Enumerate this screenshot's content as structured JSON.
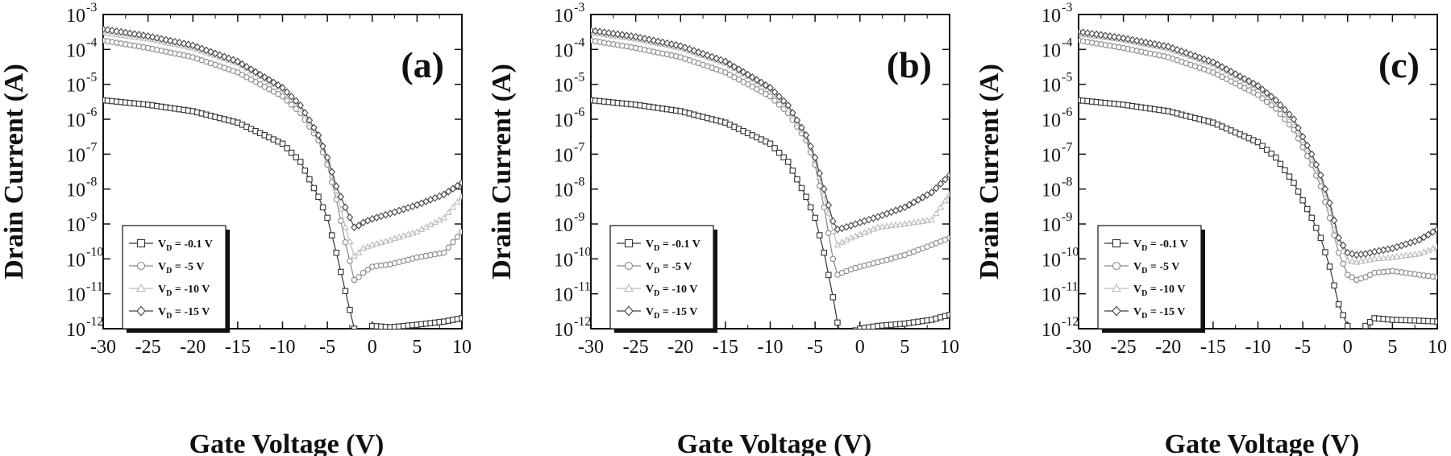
{
  "chart_data": [
    {
      "type": "line",
      "panel_label": "(a)",
      "xlabel": "Gate Voltage (V)",
      "ylabel": "Drain Current (A)",
      "xlim": [
        -30,
        10
      ],
      "ylim": [
        1e-12,
        0.001
      ],
      "yscale": "log",
      "x_ticks": [
        "-30",
        "-25",
        "-20",
        "-15",
        "-10",
        "-5",
        "0",
        "5",
        "10"
      ],
      "y_tick_exponents": [
        "-3",
        "-4",
        "-5",
        "-6",
        "-7",
        "-8",
        "-9",
        "-10",
        "-11",
        "-12"
      ],
      "legend_position": "bottom-left",
      "series": [
        {
          "name": "V_D = -0.1 V",
          "label_main": "V",
          "label_sub": "D",
          "label_rest": " = -0.1 V",
          "marker": "square",
          "color": "#333333",
          "x": [
            -30,
            -25,
            -20,
            -15,
            -10,
            -8,
            -6,
            -5,
            -4,
            -3,
            -2,
            -1.5,
            -1,
            0,
            2,
            5,
            8,
            10
          ],
          "y": [
            3.5e-06,
            2.6e-06,
            1.7e-06,
            8e-07,
            2e-07,
            6e-08,
            6e-09,
            1.5e-09,
            1.5e-10,
            1.2e-11,
            1e-12,
            4e-13,
            6e-13,
            1.2e-12,
            1.1e-12,
            1.3e-12,
            1.6e-12,
            2e-12
          ]
        },
        {
          "name": "V_D = -5 V",
          "label_main": "V",
          "label_sub": "D",
          "label_rest": " = -5 V",
          "marker": "circle",
          "color": "#888888",
          "x": [
            -30,
            -25,
            -20,
            -15,
            -10,
            -8,
            -6,
            -5,
            -4,
            -3,
            -2,
            -1.5,
            -1,
            0,
            2,
            5,
            8,
            10
          ],
          "y": [
            0.00018,
            0.00011,
            6e-05,
            2.2e-05,
            4.5e-06,
            1.5e-06,
            2.5e-07,
            5e-08,
            5e-09,
            3e-10,
            2.5e-11,
            3e-11,
            4e-11,
            6e-11,
            7e-11,
            1.1e-10,
            1.5e-10,
            6e-10
          ]
        },
        {
          "name": "V_D = -10 V",
          "label_main": "V",
          "label_sub": "D",
          "label_rest": " = -10 V",
          "marker": "triangle",
          "color": "#bbbbbb",
          "x": [
            -30,
            -25,
            -20,
            -15,
            -10,
            -8,
            -6,
            -5,
            -4,
            -3,
            -2,
            -1.5,
            -1,
            0,
            2,
            5,
            8,
            10
          ],
          "y": [
            0.0003,
            0.0002,
            0.00011,
            4e-05,
            7e-06,
            2e-06,
            3e-07,
            7e-08,
            9e-09,
            8e-10,
            1.2e-10,
            1.5e-10,
            2e-10,
            2.5e-10,
            3.5e-10,
            6e-10,
            1.5e-09,
            6e-09
          ]
        },
        {
          "name": "V_D = -15 V",
          "label_main": "V",
          "label_sub": "D",
          "label_rest": " = -15 V",
          "marker": "diamond",
          "color": "#444444",
          "x": [
            -30,
            -25,
            -20,
            -15,
            -10,
            -8,
            -6,
            -5,
            -4,
            -3,
            -2,
            -1.5,
            -1,
            0,
            2,
            5,
            8,
            10
          ],
          "y": [
            0.00038,
            0.00024,
            0.00013,
            4.5e-05,
            8e-06,
            2.5e-06,
            3.5e-07,
            8e-08,
            1.2e-08,
            3e-09,
            8e-10,
            9e-10,
            1.1e-09,
            1.4e-09,
            2e-09,
            3.5e-09,
            7e-09,
            1.5e-08
          ]
        }
      ]
    },
    {
      "type": "line",
      "panel_label": "(b)",
      "xlabel": "Gate Voltage (V)",
      "ylabel": "Drain Current (A)",
      "xlim": [
        -30,
        10
      ],
      "ylim": [
        1e-12,
        0.001
      ],
      "yscale": "log",
      "x_ticks": [
        "-30",
        "-25",
        "-20",
        "-15",
        "-10",
        "-5",
        "0",
        "5",
        "10"
      ],
      "y_tick_exponents": [
        "-3",
        "-4",
        "-5",
        "-6",
        "-7",
        "-8",
        "-9",
        "-10",
        "-11",
        "-12"
      ],
      "legend_position": "bottom-left",
      "series": [
        {
          "name": "V_D = -0.1 V",
          "label_main": "V",
          "label_sub": "D",
          "label_rest": " = -0.1 V",
          "marker": "square",
          "color": "#333333",
          "x": [
            -30,
            -25,
            -20,
            -15,
            -10,
            -8,
            -6,
            -5,
            -4,
            -3,
            -2.5,
            -2,
            -1,
            0,
            2,
            5,
            8,
            10
          ],
          "y": [
            3.5e-06,
            2.6e-06,
            1.7e-06,
            8e-07,
            2e-07,
            6e-08,
            6e-09,
            1.5e-09,
            1.5e-10,
            8e-12,
            1.5e-12,
            5e-13,
            8e-13,
            1e-12,
            1.2e-12,
            1.4e-12,
            1.8e-12,
            2.5e-12
          ]
        },
        {
          "name": "V_D = -5 V",
          "label_main": "V",
          "label_sub": "D",
          "label_rest": " = -5 V",
          "marker": "circle",
          "color": "#888888",
          "x": [
            -30,
            -25,
            -20,
            -15,
            -10,
            -8,
            -6,
            -5,
            -4,
            -3,
            -2.5,
            -2,
            -1,
            0,
            2,
            5,
            8,
            10
          ],
          "y": [
            0.00018,
            0.00011,
            6e-05,
            2.2e-05,
            4.5e-06,
            1.5e-06,
            2.5e-07,
            5e-08,
            3e-09,
            1e-10,
            3.5e-11,
            4e-11,
            5e-11,
            6e-11,
            8e-11,
            1.3e-10,
            2.5e-10,
            4e-10
          ]
        },
        {
          "name": "V_D = -10 V",
          "label_main": "V",
          "label_sub": "D",
          "label_rest": " = -10 V",
          "marker": "triangle",
          "color": "#bbbbbb",
          "x": [
            -30,
            -25,
            -20,
            -15,
            -10,
            -8,
            -6,
            -5,
            -4,
            -3,
            -2.5,
            -2,
            -1,
            0,
            2,
            5,
            8,
            10
          ],
          "y": [
            0.0003,
            0.0002,
            0.00011,
            4e-05,
            7e-06,
            2e-06,
            3e-07,
            7e-08,
            7e-09,
            6e-10,
            2.5e-10,
            3e-10,
            4e-10,
            5e-10,
            8e-10,
            1e-09,
            1.3e-09,
            7e-09
          ]
        },
        {
          "name": "V_D = -15 V",
          "label_main": "V",
          "label_sub": "D",
          "label_rest": " = -15 V",
          "marker": "diamond",
          "color": "#444444",
          "x": [
            -30,
            -25,
            -20,
            -15,
            -10,
            -8,
            -6,
            -5,
            -4,
            -3,
            -2.5,
            -2,
            -1,
            0,
            2,
            5,
            8,
            10
          ],
          "y": [
            0.00035,
            0.00023,
            0.000125,
            4.5e-05,
            8e-06,
            2.5e-06,
            3.5e-07,
            8e-08,
            1e-08,
            1.2e-09,
            7e-10,
            7.5e-10,
            9e-10,
            1.1e-09,
            1.6e-09,
            3e-09,
            8e-09,
            2.5e-08
          ]
        }
      ]
    },
    {
      "type": "line",
      "panel_label": "(c)",
      "xlabel": "Gate Voltage (V)",
      "ylabel": "Drain Current (A)",
      "xlim": [
        -30,
        10
      ],
      "ylim": [
        1e-12,
        0.001
      ],
      "yscale": "log",
      "x_ticks": [
        "-30",
        "-25",
        "-20",
        "-15",
        "-10",
        "-5",
        "0",
        "5",
        "10"
      ],
      "y_tick_exponents": [
        "-3",
        "-4",
        "-5",
        "-6",
        "-7",
        "-8",
        "-9",
        "-10",
        "-11",
        "-12"
      ],
      "legend_position": "bottom-left",
      "series": [
        {
          "name": "V_D = -0.1 V",
          "label_main": "V",
          "label_sub": "D",
          "label_rest": " = -0.1 V",
          "marker": "square",
          "color": "#333333",
          "x": [
            -30,
            -25,
            -20,
            -15,
            -10,
            -8,
            -6,
            -4,
            -3,
            -2,
            -1,
            0,
            0.5,
            1,
            2,
            3,
            5,
            8,
            10
          ],
          "y": [
            3.5e-06,
            2.6e-06,
            1.7e-06,
            8e-07,
            2.2e-07,
            8e-08,
            1.5e-08,
            1.5e-09,
            4e-10,
            6e-11,
            5e-12,
            1.2e-12,
            6e-13,
            6e-13,
            1.2e-12,
            2e-12,
            1.8e-12,
            1.7e-12,
            1.6e-12
          ]
        },
        {
          "name": "V_D = -5 V",
          "label_main": "V",
          "label_sub": "D",
          "label_rest": " = -5 V",
          "marker": "circle",
          "color": "#888888",
          "x": [
            -30,
            -25,
            -20,
            -15,
            -10,
            -8,
            -6,
            -4,
            -3,
            -2,
            -1,
            0,
            1,
            2,
            3,
            5,
            8,
            10
          ],
          "y": [
            0.00018,
            0.00011,
            6e-05,
            2.2e-05,
            5e-06,
            2e-06,
            5e-07,
            5e-08,
            1.2e-08,
            1.5e-09,
            1.5e-10,
            3.5e-11,
            2.5e-11,
            3e-11,
            4e-11,
            4.5e-11,
            3.5e-11,
            3e-11
          ]
        },
        {
          "name": "V_D = -10 V",
          "label_main": "V",
          "label_sub": "D",
          "label_rest": " = -10 V",
          "marker": "triangle",
          "color": "#bbbbbb",
          "x": [
            -30,
            -25,
            -20,
            -15,
            -10,
            -8,
            -6,
            -4,
            -3,
            -2,
            -1,
            0,
            1,
            2,
            3,
            5,
            8,
            10
          ],
          "y": [
            0.00028,
            0.00019,
            0.000105,
            3.8e-05,
            8e-06,
            3e-06,
            8e-07,
            8e-08,
            2e-08,
            3e-09,
            3e-10,
            9e-11,
            8e-11,
            9e-11,
            1e-10,
            1.1e-10,
            1.4e-10,
            2.2e-10
          ]
        },
        {
          "name": "V_D = -15 V",
          "label_main": "V",
          "label_sub": "D",
          "label_rest": " = -15 V",
          "marker": "diamond",
          "color": "#444444",
          "x": [
            -30,
            -25,
            -20,
            -15,
            -10,
            -8,
            -6,
            -4,
            -3,
            -2,
            -1,
            0,
            1,
            2,
            3,
            5,
            8,
            10
          ],
          "y": [
            0.00032,
            0.00021,
            0.00012,
            4.3e-05,
            9e-06,
            3.5e-06,
            1e-06,
            1e-07,
            2.5e-08,
            4e-09,
            4e-10,
            1.5e-10,
            1.3e-10,
            1.4e-10,
            1.6e-10,
            2e-10,
            3.5e-10,
            7e-10
          ]
        }
      ]
    }
  ]
}
